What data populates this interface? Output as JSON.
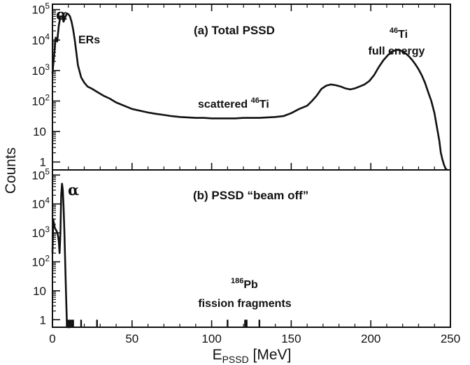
{
  "chart_data": [
    {
      "type": "line",
      "panel": "a",
      "title": "(a)  Total PSSD",
      "ylabel": "Counts",
      "xlim": [
        0,
        250
      ],
      "yscale": "log",
      "ylim": [
        0.55,
        150000
      ],
      "yticks": [
        {
          "value": 1,
          "base": "1",
          "exp": ""
        },
        {
          "value": 10,
          "base": "10",
          "exp": ""
        },
        {
          "value": 100,
          "base": "10",
          "exp": "2"
        },
        {
          "value": 1000,
          "base": "10",
          "exp": "3"
        },
        {
          "value": 10000,
          "base": "10",
          "exp": "4"
        },
        {
          "value": 100000,
          "base": "10",
          "exp": "5"
        }
      ],
      "annotations": {
        "alpha": "α",
        "ers": "ERs",
        "scattered_text": "scattered ",
        "scattered_sup": "46",
        "scattered_el": "Ti",
        "ti_sup": "46",
        "ti_el": "Ti",
        "full_energy": "full energy"
      },
      "series": [
        {
          "x": [
            0,
            1,
            2,
            3,
            4,
            5,
            6,
            7,
            8,
            9,
            10,
            11,
            12,
            13,
            14,
            15,
            16,
            18,
            20,
            22,
            25,
            28,
            32,
            36,
            40,
            45,
            50,
            55,
            60,
            65,
            70,
            75,
            80,
            85,
            90,
            95,
            100,
            105,
            110,
            115,
            120,
            125,
            130,
            135,
            140,
            145,
            150,
            155,
            160,
            163,
            166,
            169,
            172,
            175,
            178,
            181,
            184,
            187,
            190,
            193,
            196,
            199,
            202,
            205,
            208,
            211,
            214,
            216,
            218,
            220,
            222,
            224,
            226,
            228,
            230,
            232,
            234,
            236,
            238,
            240,
            241,
            242,
            243,
            244,
            245,
            246,
            247,
            248
          ],
          "y": [
            800,
            3000,
            12000,
            9000,
            30000,
            60000,
            60000,
            40000,
            55000,
            75000,
            70000,
            60000,
            40000,
            22000,
            10000,
            4000,
            1500,
            600,
            400,
            300,
            250,
            200,
            150,
            120,
            90,
            70,
            55,
            48,
            42,
            38,
            35,
            32,
            30,
            29,
            28,
            28,
            27,
            27,
            27,
            27,
            28,
            28,
            28,
            29,
            30,
            32,
            40,
            55,
            70,
            100,
            150,
            250,
            320,
            350,
            330,
            300,
            260,
            240,
            260,
            300,
            350,
            450,
            700,
            1300,
            2200,
            3300,
            4300,
            4800,
            4700,
            4300,
            3600,
            2900,
            2200,
            1600,
            1100,
            700,
            400,
            200,
            100,
            40,
            20,
            10,
            5,
            2,
            1.2,
            0.8,
            0.6,
            0.55
          ]
        }
      ]
    },
    {
      "type": "line",
      "panel": "b",
      "title": "(b) PSSD “beam off”",
      "xlabel_base": "E",
      "xlabel_sub": "PSSD",
      "xlabel_unit": " [MeV]",
      "xlim": [
        0,
        250
      ],
      "xticks": [
        "0",
        "50",
        "100",
        "150",
        "200",
        "250"
      ],
      "yscale": "log",
      "ylim": [
        0.55,
        150000
      ],
      "yticks": [
        {
          "value": 1,
          "base": "1",
          "exp": ""
        },
        {
          "value": 10,
          "base": "10",
          "exp": ""
        },
        {
          "value": 100,
          "base": "10",
          "exp": "2"
        },
        {
          "value": 1000,
          "base": "10",
          "exp": "3"
        },
        {
          "value": 10000,
          "base": "10",
          "exp": "4"
        },
        {
          "value": 100000,
          "base": "10",
          "exp": "5"
        }
      ],
      "annotations": {
        "alpha": "α",
        "pb_sup": "186",
        "pb_el": "Pb",
        "fission": "fission fragments"
      },
      "series": [
        {
          "x": [
            0,
            0.5,
            1,
            1.5,
            2,
            2.5,
            3,
            3.5,
            4,
            4.5,
            5,
            5.5,
            6,
            6.5,
            7,
            7.5,
            8,
            8.5,
            9,
            9.5,
            10,
            10.5,
            11
          ],
          "y": [
            200,
            3000,
            2000,
            1500,
            1300,
            1200,
            1000,
            800,
            500,
            200,
            1000,
            20000,
            50000,
            30000,
            8000,
            1000,
            100,
            10,
            1,
            0.55,
            0.55,
            0.55,
            0.55
          ]
        }
      ],
      "sparse_events": [
        9,
        10,
        11,
        12,
        13,
        18,
        28,
        110,
        121,
        122,
        130
      ]
    }
  ]
}
